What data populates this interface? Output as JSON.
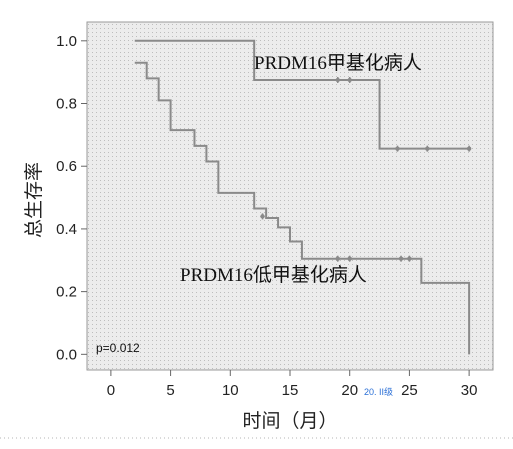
{
  "chart_data": {
    "type": "line",
    "step": true,
    "xlabel": "时间（月）",
    "ylabel": "总生存率",
    "xlim": [
      -2,
      32
    ],
    "ylim": [
      -0.05,
      1.06
    ],
    "xticks": [
      "0",
      "5",
      "10",
      "15",
      "20",
      "25",
      "30"
    ],
    "yticks": [
      "0.0",
      "0.2",
      "0.4",
      "0.6",
      "0.8",
      "1.0"
    ],
    "grid": "dotted-background",
    "pvalue_text": "p=0.012",
    "colors": {
      "line": "#8a8a8a",
      "background": "#ececec",
      "dots": "#b5b5b5"
    },
    "series": [
      {
        "name": "PRDM16甲基化病人",
        "steps": [
          [
            2,
            1.0
          ],
          [
            12,
            0.875
          ],
          [
            22.5,
            0.656
          ],
          [
            30,
            0.656
          ]
        ],
        "censored": [
          [
            19,
            0.875
          ],
          [
            20,
            0.875
          ],
          [
            24,
            0.656
          ],
          [
            26.5,
            0.656
          ],
          [
            30,
            0.656
          ]
        ]
      },
      {
        "name": "PRDM16低甲基化病人",
        "steps": [
          [
            2,
            0.93
          ],
          [
            3,
            0.88
          ],
          [
            4,
            0.81
          ],
          [
            5,
            0.715
          ],
          [
            7,
            0.665
          ],
          [
            8,
            0.615
          ],
          [
            9,
            0.515
          ],
          [
            12,
            0.465
          ],
          [
            13,
            0.435
          ],
          [
            14,
            0.405
          ],
          [
            15,
            0.36
          ],
          [
            16,
            0.305
          ],
          [
            26,
            0.228
          ],
          [
            30,
            0.0
          ]
        ],
        "censored": [
          [
            12.7,
            0.44
          ],
          [
            19,
            0.305
          ],
          [
            20,
            0.305
          ],
          [
            24.3,
            0.305
          ],
          [
            25,
            0.305
          ]
        ]
      }
    ],
    "annotations": [
      "PRDM16甲基化病人",
      "PRDM16低甲基化病人"
    ]
  },
  "watermark": "20. II级"
}
